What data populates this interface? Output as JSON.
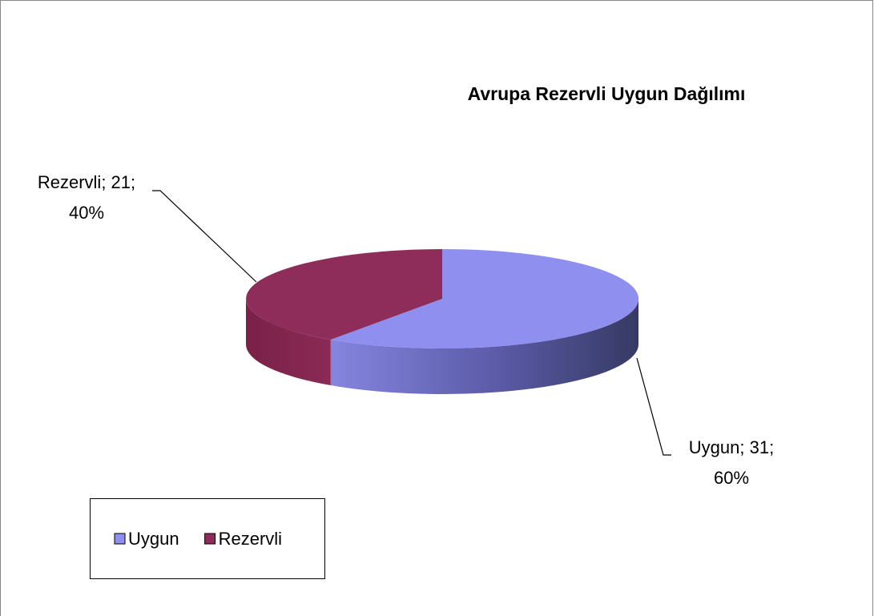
{
  "chart_data": {
    "type": "pie3d",
    "title": "Avrupa Rezervli Uygun Dağılımı",
    "categories": [
      "Uygun",
      "Rezervli"
    ],
    "values": [
      31,
      21
    ],
    "value_labels": [
      "Uygun; 31;",
      "Rezervli; 21;"
    ],
    "percent_labels": [
      "60%",
      "40%"
    ],
    "colors": [
      "#8f8fef",
      "#8e2c5a"
    ],
    "legend": "bottom-left"
  }
}
